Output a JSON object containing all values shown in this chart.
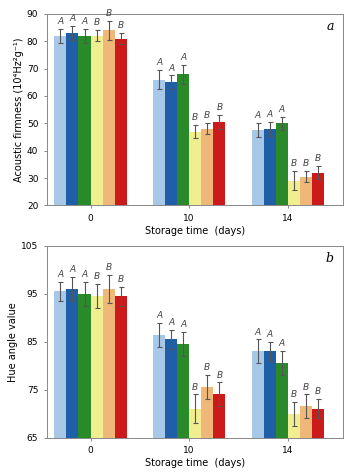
{
  "subplot_a": {
    "title": "a",
    "ylabel": "Acoustic firmness (10⁴Hz²g⁻¹)",
    "xlabel": "Storage time  (days)",
    "ylim": [
      20,
      90
    ],
    "yticks": [
      20,
      30,
      40,
      50,
      60,
      70,
      80,
      90
    ],
    "xtick_labels": [
      "0",
      "10",
      "14"
    ],
    "bar_values": [
      [
        82.0,
        83.0,
        82.0,
        82.0,
        84.0,
        81.0
      ],
      [
        66.0,
        65.0,
        68.0,
        47.0,
        48.0,
        50.5
      ],
      [
        47.5,
        48.0,
        50.0,
        29.0,
        30.5,
        32.0
      ]
    ],
    "bar_errors": [
      [
        2.5,
        2.5,
        2.5,
        2.0,
        3.5,
        2.0
      ],
      [
        3.5,
        2.5,
        3.5,
        2.5,
        2.0,
        2.5
      ],
      [
        2.5,
        2.5,
        2.5,
        3.5,
        2.0,
        2.5
      ]
    ],
    "sig_labels": [
      [
        "A",
        "A",
        "A",
        "B",
        "B",
        "B"
      ],
      [
        "A",
        "A",
        "A",
        "B",
        "B",
        "B"
      ],
      [
        "A",
        "A",
        "A",
        "B",
        "B",
        "B"
      ]
    ]
  },
  "subplot_b": {
    "title": "b",
    "ylabel": "Hue angle value",
    "xlabel": "Storage time  (days)",
    "ylim": [
      65,
      105
    ],
    "yticks": [
      65,
      75,
      85,
      95,
      105
    ],
    "xtick_labels": [
      "0",
      "10",
      "14"
    ],
    "bar_values": [
      [
        95.5,
        96.0,
        95.0,
        94.5,
        96.0,
        94.5
      ],
      [
        86.5,
        85.5,
        84.5,
        71.0,
        75.5,
        74.0
      ],
      [
        83.0,
        83.0,
        80.5,
        70.0,
        71.5,
        71.0
      ]
    ],
    "bar_errors": [
      [
        2.0,
        2.5,
        2.5,
        2.5,
        3.0,
        2.0
      ],
      [
        2.5,
        2.0,
        2.5,
        3.0,
        2.5,
        2.5
      ],
      [
        2.5,
        2.0,
        2.5,
        2.5,
        2.5,
        2.0
      ]
    ],
    "sig_labels": [
      [
        "A",
        "A",
        "A",
        "B",
        "B",
        "B"
      ],
      [
        "A",
        "A",
        "A",
        "B",
        "B",
        "B"
      ],
      [
        "A",
        "A",
        "A",
        "B",
        "B",
        "B"
      ]
    ]
  },
  "bar_colors": [
    "#a8c8e8",
    "#1e5fa8",
    "#2a8a2a",
    "#f0ee90",
    "#f0b878",
    "#cc1a1a"
  ],
  "bar_width": 0.11,
  "background_color": "#ffffff",
  "fontsize_label": 7.0,
  "fontsize_tick": 6.5,
  "fontsize_sig": 6.5,
  "fontsize_title": 9
}
